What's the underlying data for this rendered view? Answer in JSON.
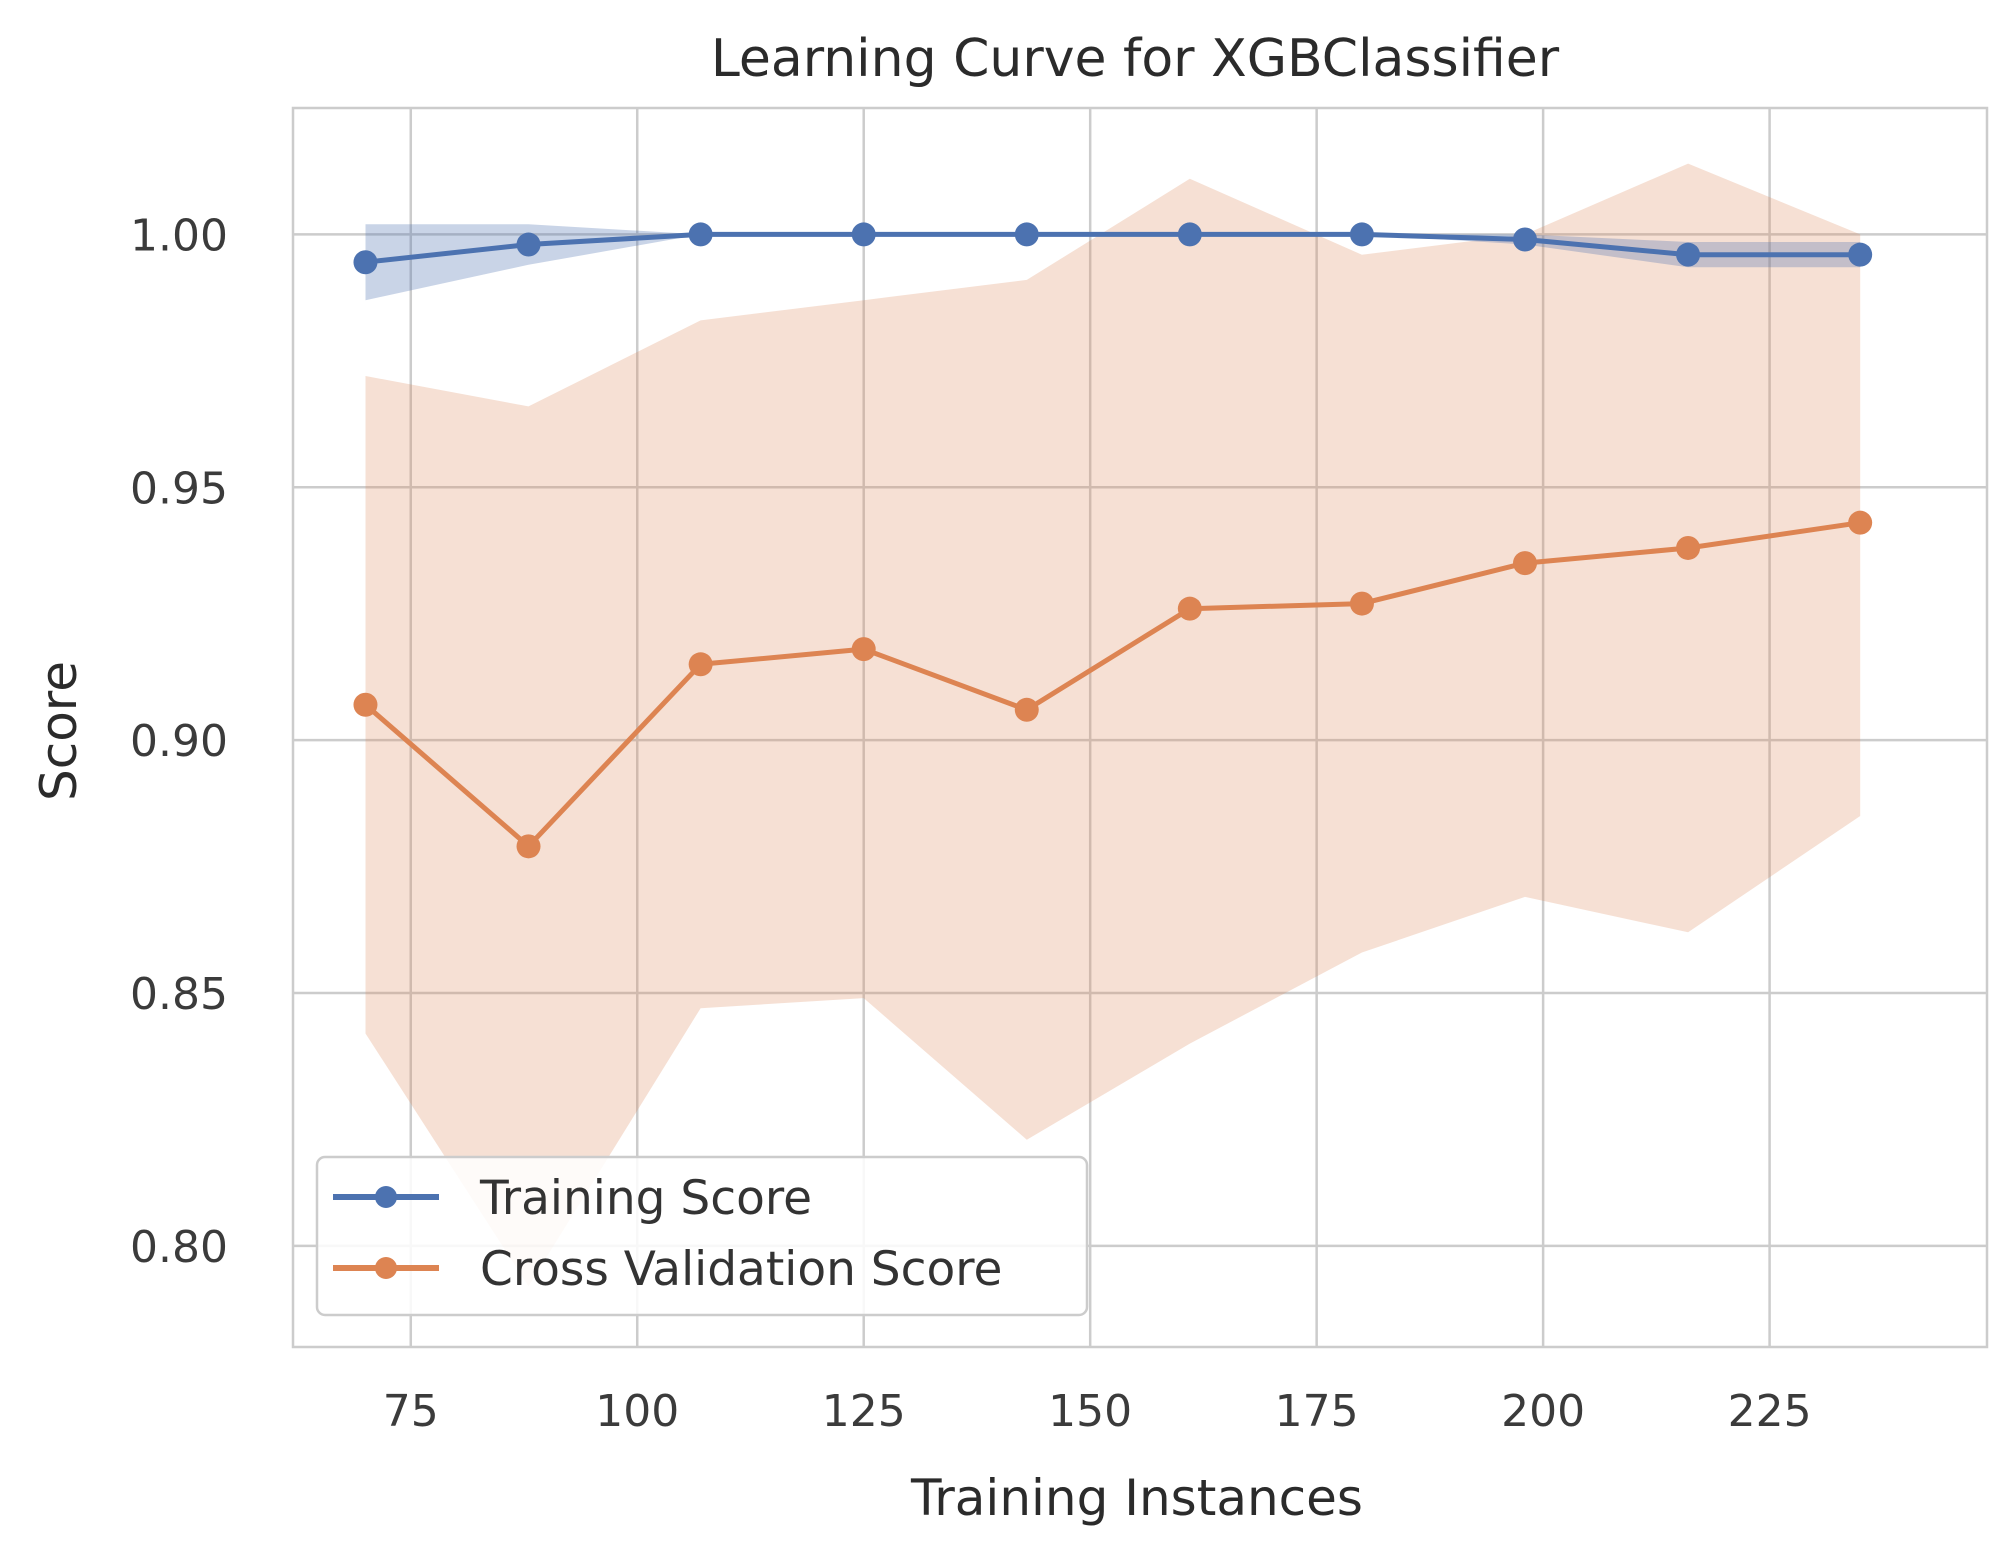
{
  "chart_data": {
    "type": "line",
    "title": "Learning Curve for XGBClassifier",
    "xlabel": "Training Instances",
    "ylabel": "Score",
    "xlim": [
      62,
      249
    ],
    "ylim": [
      0.78,
      1.025
    ],
    "xticks": [
      75,
      100,
      125,
      150,
      175,
      200,
      225
    ],
    "yticks": [
      0.8,
      0.85,
      0.9,
      0.95,
      1.0
    ],
    "x_tick_labels": [
      "75",
      "100",
      "125",
      "150",
      "175",
      "200",
      "225"
    ],
    "y_tick_labels": [
      "0.80",
      "0.85",
      "0.90",
      "0.95",
      "1.00"
    ],
    "grid": true,
    "legend_position": "lower-left",
    "x": [
      70,
      88,
      107,
      125,
      143,
      161,
      180,
      198,
      216,
      235
    ],
    "series": [
      {
        "name": "Training Score",
        "color": "#4c72b0",
        "values": [
          0.9945,
          0.998,
          1.0,
          1.0,
          1.0,
          1.0,
          1.0,
          0.999,
          0.996,
          0.996
        ],
        "band_upper": [
          1.002,
          1.002,
          1.0,
          1.0,
          1.0,
          1.0,
          1.0,
          1.0,
          0.9985,
          0.9985
        ],
        "band_lower": [
          0.987,
          0.994,
          1.0,
          1.0,
          1.0,
          1.0,
          1.0,
          0.998,
          0.9935,
          0.9935
        ]
      },
      {
        "name": "Cross Validation Score",
        "color": "#dd8452",
        "values": [
          0.907,
          0.879,
          0.915,
          0.918,
          0.906,
          0.926,
          0.927,
          0.935,
          0.938,
          0.943
        ],
        "band_upper": [
          0.972,
          0.966,
          0.983,
          0.987,
          0.991,
          1.011,
          0.996,
          1.0,
          1.014,
          1.0
        ],
        "band_lower": [
          0.842,
          0.792,
          0.847,
          0.849,
          0.821,
          0.84,
          0.858,
          0.869,
          0.862,
          0.885
        ]
      }
    ]
  }
}
